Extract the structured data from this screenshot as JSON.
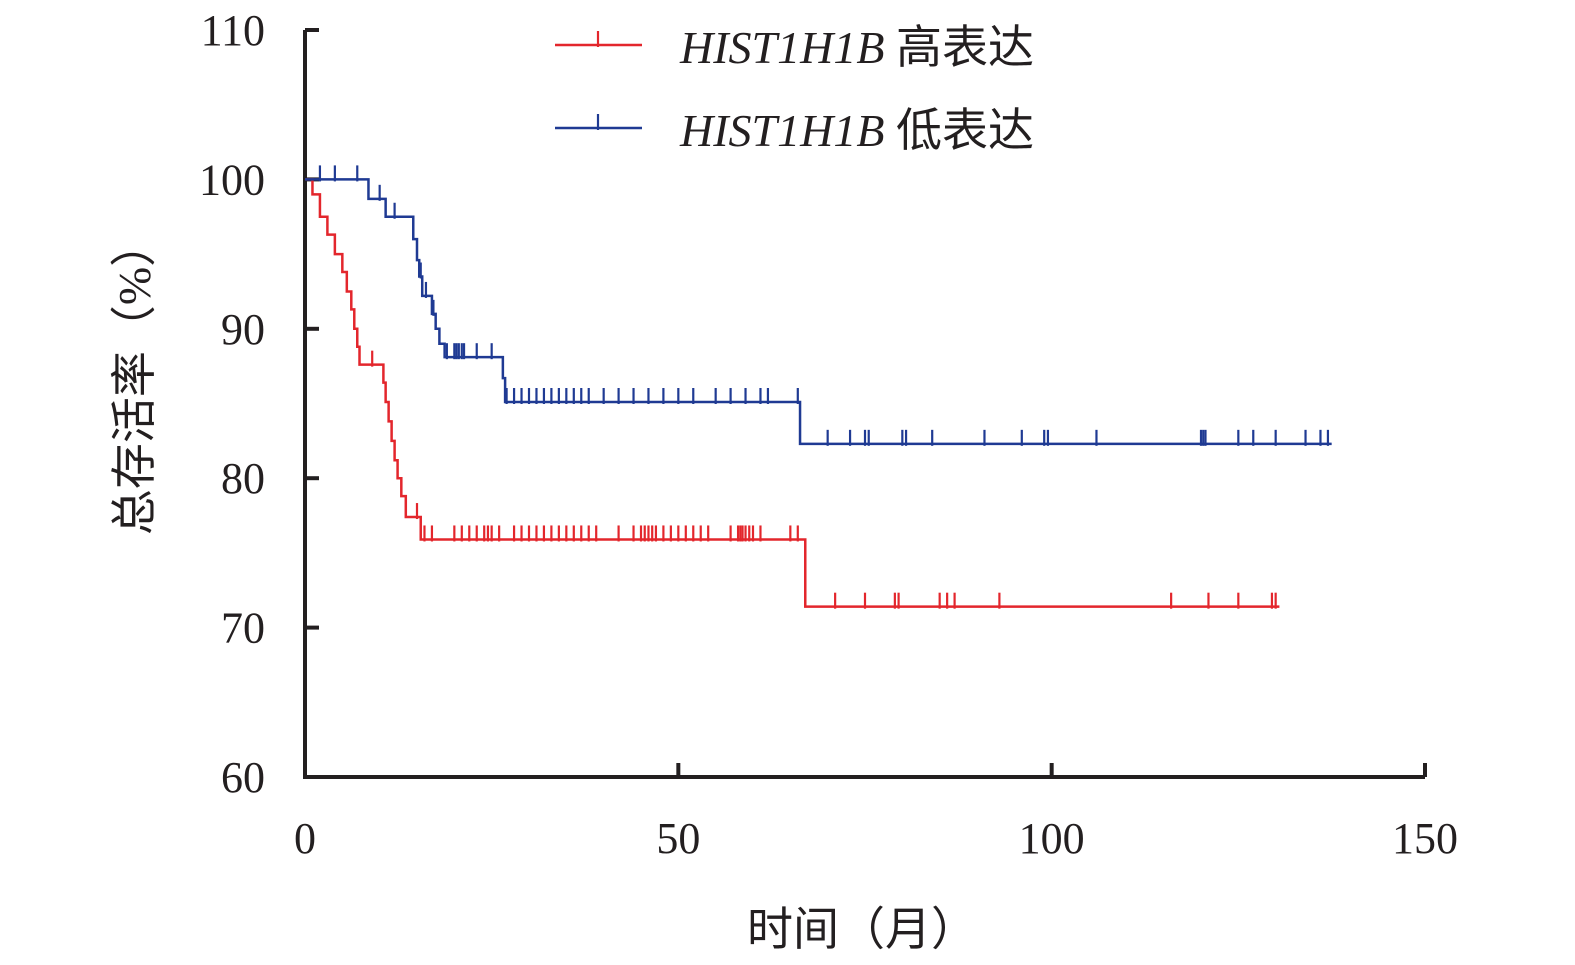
{
  "chart_data": {
    "type": "line",
    "subtype": "kaplan-meier step",
    "title": "",
    "xlabel": "时间（月）",
    "ylabel": "总存活率（%）",
    "xlim": [
      0,
      150
    ],
    "ylim": [
      60,
      110
    ],
    "x_ticks": [
      "0",
      "50",
      "100",
      "150"
    ],
    "y_ticks": [
      "60",
      "70",
      "80",
      "90",
      "100",
      "110"
    ],
    "grid": false,
    "legend_position": "top",
    "series": [
      {
        "name_gene": "HIST1H1B",
        "name_suffix": "高表达",
        "color": "#e3262c",
        "steps": [
          [
            0,
            100
          ],
          [
            1,
            99
          ],
          [
            2,
            97.5
          ],
          [
            3,
            96.3
          ],
          [
            4,
            95
          ],
          [
            5,
            93.8
          ],
          [
            5.6,
            92.5
          ],
          [
            6.2,
            91.3
          ],
          [
            6.6,
            90
          ],
          [
            7,
            88.8
          ],
          [
            7.3,
            87.6
          ],
          [
            10.5,
            86.4
          ],
          [
            10.8,
            85.1
          ],
          [
            11.2,
            83.8
          ],
          [
            11.6,
            82.5
          ],
          [
            12,
            81.2
          ],
          [
            12.4,
            80
          ],
          [
            12.9,
            78.8
          ],
          [
            13.5,
            77.4
          ],
          [
            15.5,
            75.9
          ],
          [
            66.8,
            75.9
          ],
          [
            67,
            71.4
          ],
          [
            130.5,
            71.4
          ]
        ],
        "censor_x": [
          9,
          15,
          16,
          17,
          20,
          21,
          22,
          23,
          24,
          24.5,
          25,
          26,
          28,
          29,
          30,
          31,
          32,
          33,
          34,
          35,
          36,
          37,
          38,
          39,
          42,
          44,
          45,
          45.5,
          46,
          46.5,
          47,
          48,
          49,
          50,
          51,
          52,
          53,
          54,
          57,
          58,
          58.3,
          58.6,
          59,
          59.5,
          60,
          61,
          65,
          66,
          71,
          75,
          79,
          79.5,
          85,
          86,
          87,
          93,
          116,
          121,
          125,
          129.5,
          130
        ]
      },
      {
        "name_gene": "HIST1H1B",
        "name_suffix": "低表达",
        "color": "#1f3a93",
        "steps": [
          [
            0,
            100
          ],
          [
            8.5,
            98.7
          ],
          [
            10.8,
            97.5
          ],
          [
            14.5,
            96
          ],
          [
            15,
            94.6
          ],
          [
            15.3,
            93.5
          ],
          [
            15.7,
            92.2
          ],
          [
            17,
            91
          ],
          [
            17.5,
            90
          ],
          [
            18,
            89
          ],
          [
            18.7,
            88.1
          ],
          [
            26.5,
            86.7
          ],
          [
            26.8,
            85.1
          ],
          [
            66,
            85.1
          ],
          [
            66.3,
            82.3
          ],
          [
            137.5,
            82.3
          ]
        ],
        "censor_x": [
          2,
          4,
          7,
          10,
          12,
          15.5,
          16.2,
          17.2,
          19,
          20,
          20.3,
          20.6,
          21,
          21.3,
          23,
          25,
          27,
          28,
          29,
          30,
          31,
          32,
          33,
          34,
          35,
          36,
          37,
          38,
          40,
          42,
          44,
          46,
          48,
          50,
          52,
          55,
          57,
          59,
          61,
          62,
          66,
          70,
          73,
          75,
          75.5,
          80,
          80.5,
          84,
          91,
          96,
          99,
          99.5,
          106,
          120,
          120.3,
          120.6,
          125,
          127,
          130,
          134,
          136,
          137
        ]
      }
    ]
  }
}
